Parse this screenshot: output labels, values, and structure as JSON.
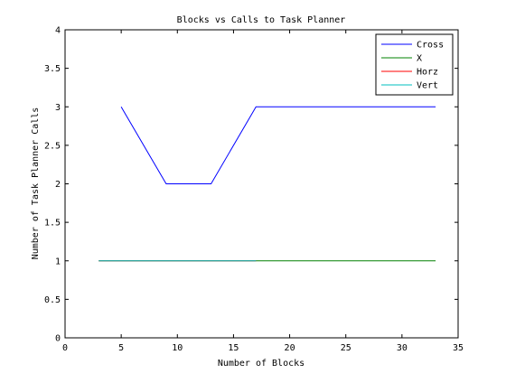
{
  "chart_data": {
    "type": "line",
    "title": "Blocks vs Calls to Task Planner",
    "xlabel": "Number of Blocks",
    "ylabel": "Number of Task Planner Calls",
    "xlim": [
      0,
      35
    ],
    "ylim": [
      0,
      4
    ],
    "xticks": [
      0,
      5,
      10,
      15,
      20,
      25,
      30,
      35
    ],
    "xtick_labels": [
      "0",
      "5",
      "10",
      "15",
      "20",
      "25",
      "30",
      "35"
    ],
    "yticks": [
      0,
      0.5,
      1,
      1.5,
      2,
      2.5,
      3,
      3.5,
      4
    ],
    "ytick_labels": [
      "0",
      "0.5",
      "1",
      "1.5",
      "2",
      "2.5",
      "3",
      "3.5",
      "4"
    ],
    "grid": false,
    "legend_position": "top-right",
    "series": [
      {
        "name": "Cross",
        "color": "#0000ff",
        "x": [
          5,
          9,
          13,
          17,
          21,
          25,
          29,
          33
        ],
        "y": [
          3,
          2,
          2,
          3,
          3,
          3,
          3,
          3
        ]
      },
      {
        "name": "X",
        "color": "#008000",
        "x": [
          3,
          7,
          11,
          15,
          19,
          23,
          27,
          31,
          33
        ],
        "y": [
          1,
          1,
          1,
          1,
          1,
          1,
          1,
          1,
          1
        ]
      },
      {
        "name": "Horz",
        "color": "#ff0000",
        "x": [
          3,
          7,
          11,
          15,
          17
        ],
        "y": [
          1,
          1,
          1,
          1,
          1
        ]
      },
      {
        "name": "Vert",
        "color": "#00bfbf",
        "x": [
          3,
          7,
          11,
          15,
          17
        ],
        "y": [
          1,
          1,
          1,
          1,
          1
        ]
      }
    ]
  }
}
